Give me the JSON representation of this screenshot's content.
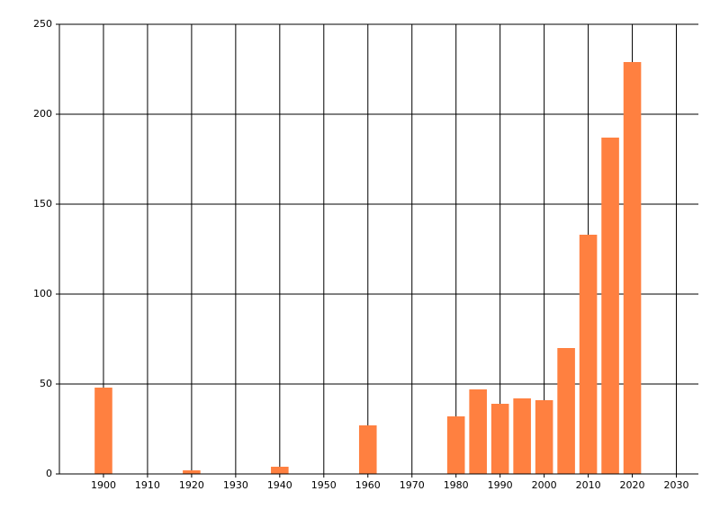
{
  "chart_data": {
    "type": "bar",
    "x": [
      1900,
      1920,
      1940,
      1960,
      1980,
      1985,
      1990,
      1995,
      2000,
      2005,
      2010,
      2015,
      2020
    ],
    "values": [
      48,
      2,
      4,
      27,
      32,
      47,
      39,
      42,
      41,
      70,
      133,
      187,
      229
    ],
    "color": "#ff8040",
    "bar_width": 4,
    "xlim": [
      1890,
      2035
    ],
    "xticks": [
      1900,
      1910,
      1920,
      1930,
      1940,
      1950,
      1960,
      1970,
      1980,
      1990,
      2000,
      2010,
      2020,
      2030
    ],
    "ylim": [
      0,
      250
    ],
    "yticks": [
      0,
      50,
      100,
      150,
      200,
      250
    ],
    "grid": true
  }
}
